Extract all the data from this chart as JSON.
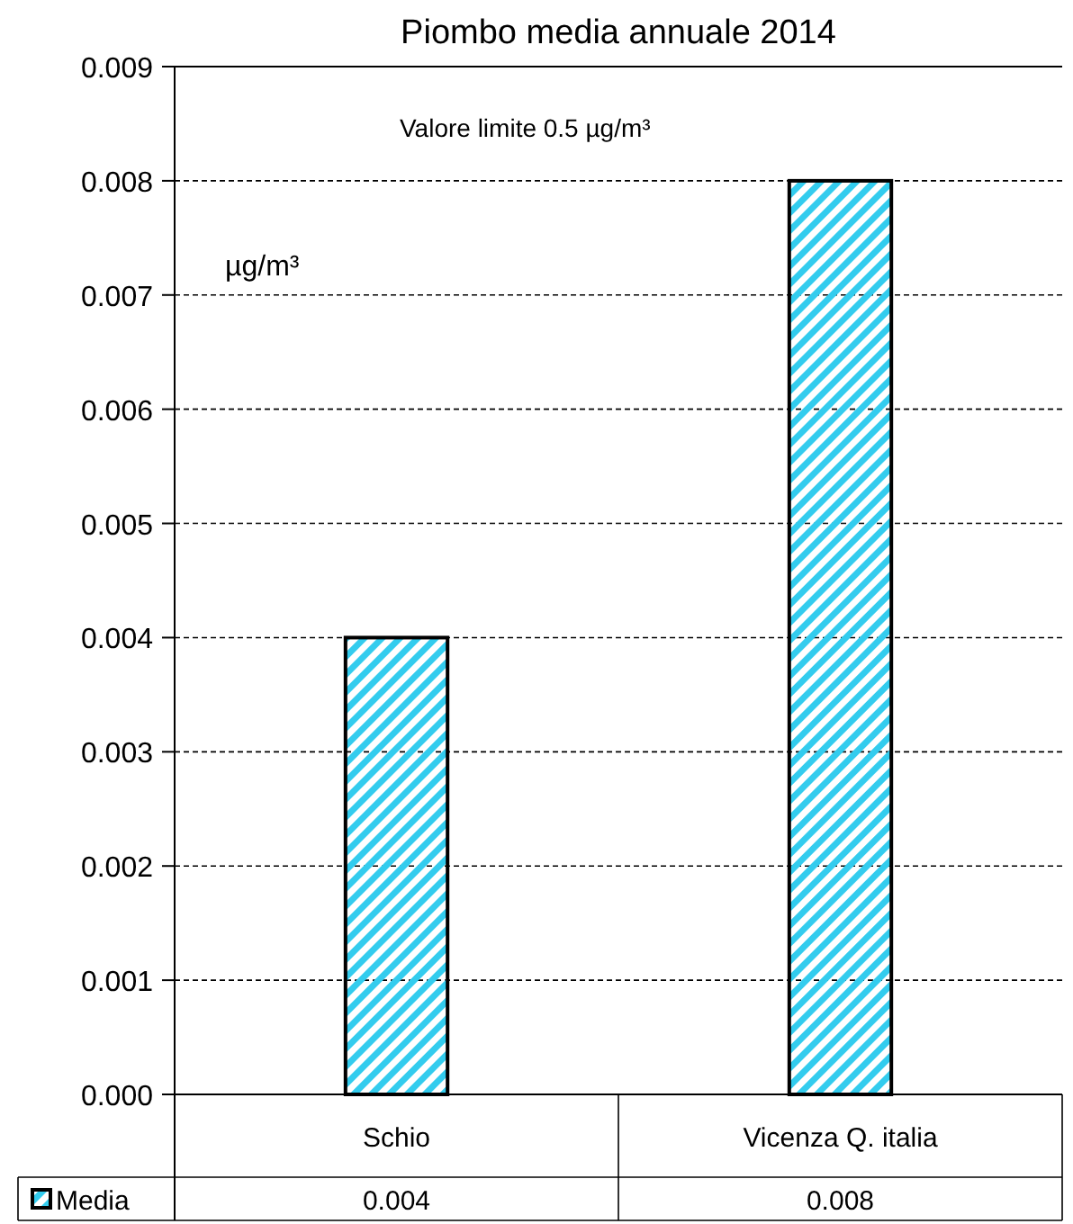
{
  "chart_data": {
    "type": "bar",
    "title": "Piombo media annuale 2014",
    "ylabel": "µg/m³",
    "annotations": [
      "Valore limite 0.5 µg/m³"
    ],
    "categories": [
      "Schio",
      "Vicenza Q. italia"
    ],
    "series": [
      {
        "name": "Media",
        "color": "#33ccee",
        "values": [
          0.004,
          0.008
        ]
      }
    ],
    "ylim": [
      0,
      0.009
    ],
    "yticks": [
      "0.000",
      "0.001",
      "0.002",
      "0.003",
      "0.004",
      "0.005",
      "0.006",
      "0.007",
      "0.008",
      "0.009"
    ],
    "grid": "y",
    "data_labels": true,
    "legend": "bottom"
  }
}
